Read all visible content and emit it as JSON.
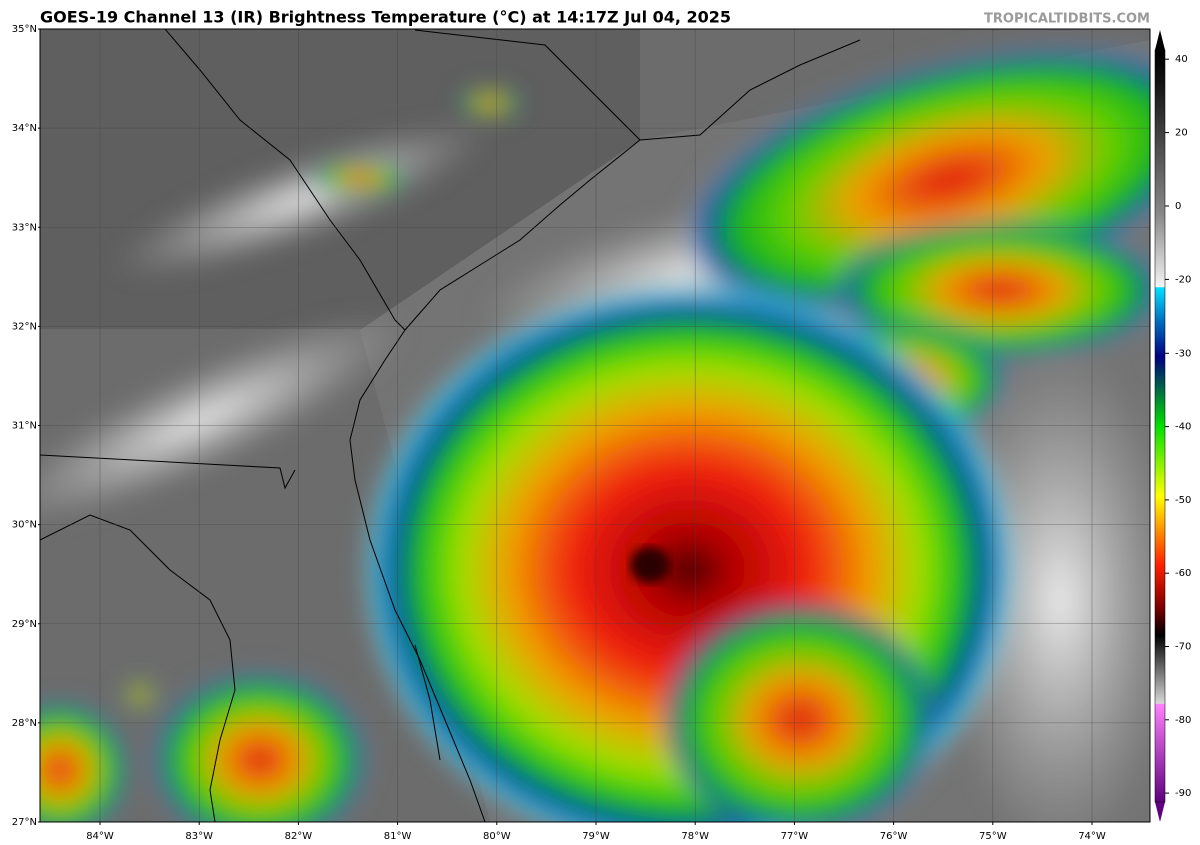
{
  "map": {
    "title": "GOES-19 Channel 13 (IR) Brightness Temperature (°C) at 14:17Z Jul 04, 2025",
    "credit": "TROPICALTIDBITS.COM",
    "lat_labels": [
      "35°N",
      "34°N",
      "33°N",
      "32°N",
      "31°N",
      "30°N",
      "29°N",
      "28°N",
      "27°N"
    ],
    "lon_labels": [
      "84°W",
      "83°W",
      "82°W",
      "81°W",
      "80°W",
      "79°W",
      "78°W",
      "77°W",
      "76°W",
      "75°W",
      "74°W"
    ],
    "colorbar": {
      "ticks": [
        40,
        20,
        0,
        -20,
        -30,
        -40,
        -50,
        -60,
        -70,
        -80,
        -90
      ]
    }
  }
}
